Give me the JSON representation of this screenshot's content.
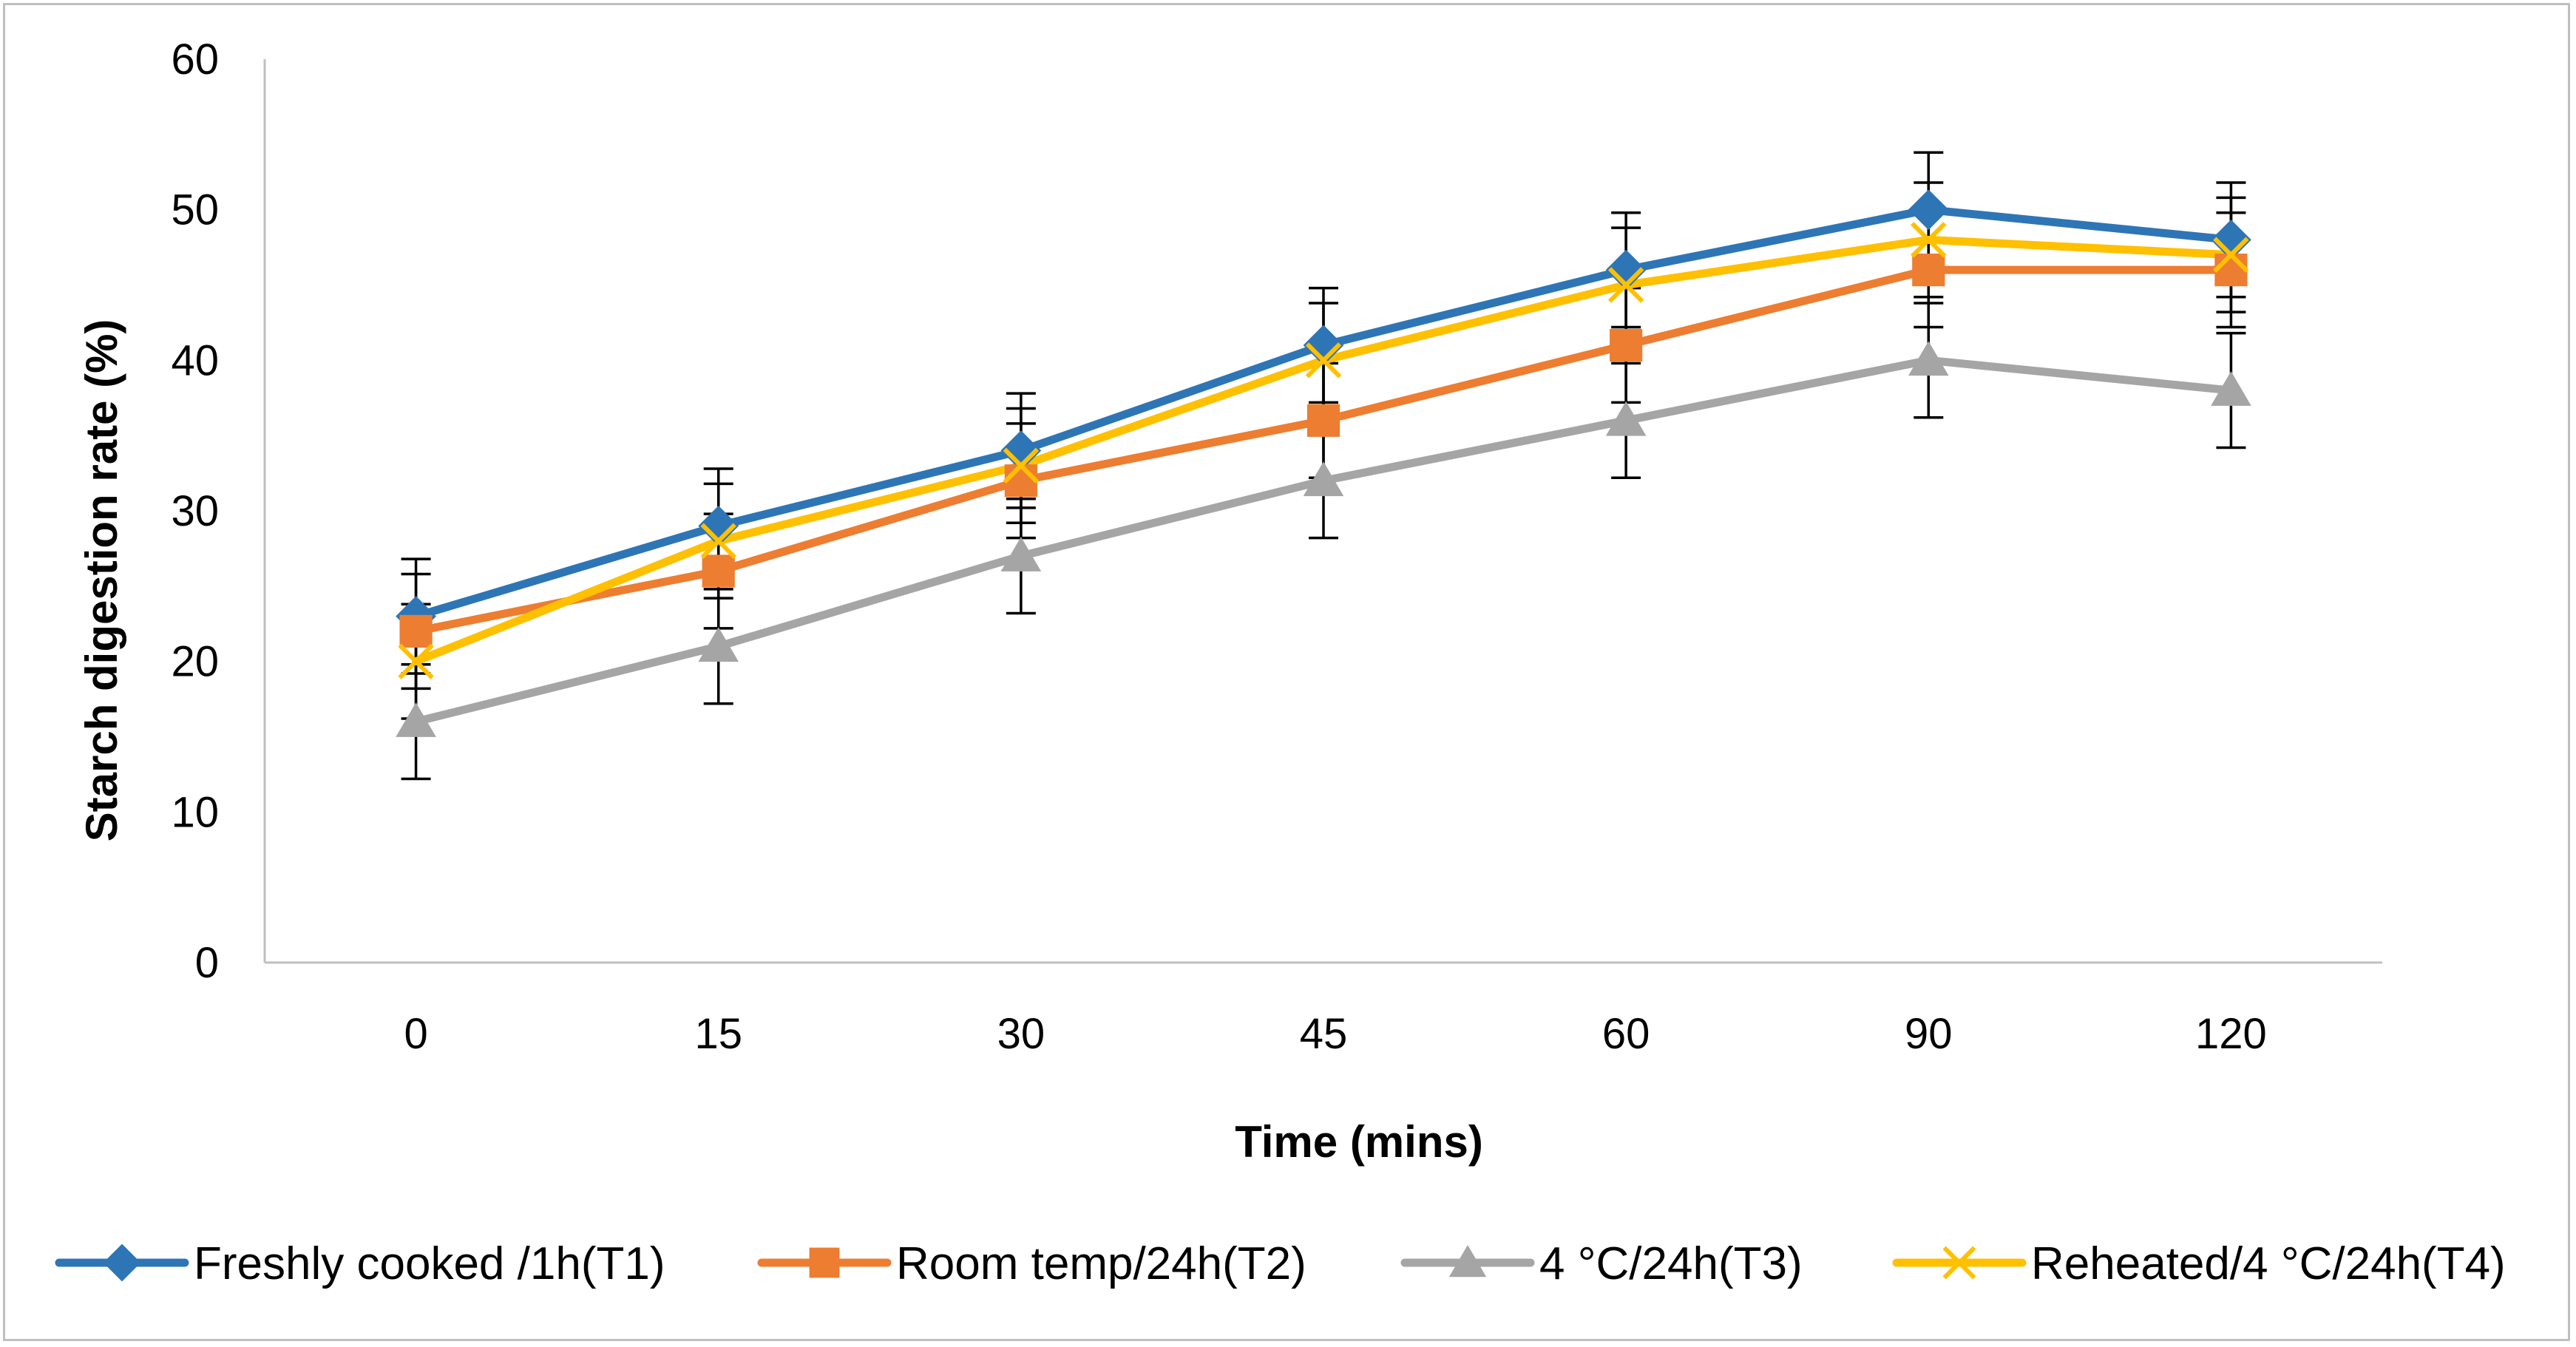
{
  "chart_data": {
    "type": "line",
    "title": "",
    "xlabel": "Time (mins)",
    "ylabel": "Starch digestion rate (%)",
    "categories": [
      "0",
      "15",
      "30",
      "45",
      "60",
      "90",
      "120"
    ],
    "ylim": [
      0,
      60
    ],
    "yticks": [
      0,
      10,
      20,
      30,
      40,
      50,
      60
    ],
    "grid": false,
    "legend_position": "bottom",
    "error_bar": 3.8,
    "series": [
      {
        "name": "Freshly cooked /1h(T1)",
        "color": "#2e75b6",
        "marker": "diamond",
        "values": [
          23,
          29,
          34,
          41,
          46,
          50,
          48
        ]
      },
      {
        "name": "Room temp/24h(T2)",
        "color": "#ed7d31",
        "marker": "square",
        "values": [
          22,
          26,
          32,
          36,
          41,
          46,
          46
        ]
      },
      {
        "name": "4 °C/24h(T3)",
        "color": "#a5a5a5",
        "marker": "triangle",
        "values": [
          16,
          21,
          27,
          32,
          36,
          40,
          38
        ]
      },
      {
        "name": "Reheated/4 °C/24h(T4)",
        "color": "#ffc000",
        "marker": "x",
        "values": [
          20,
          28,
          33,
          40,
          45,
          48,
          47
        ]
      }
    ]
  }
}
